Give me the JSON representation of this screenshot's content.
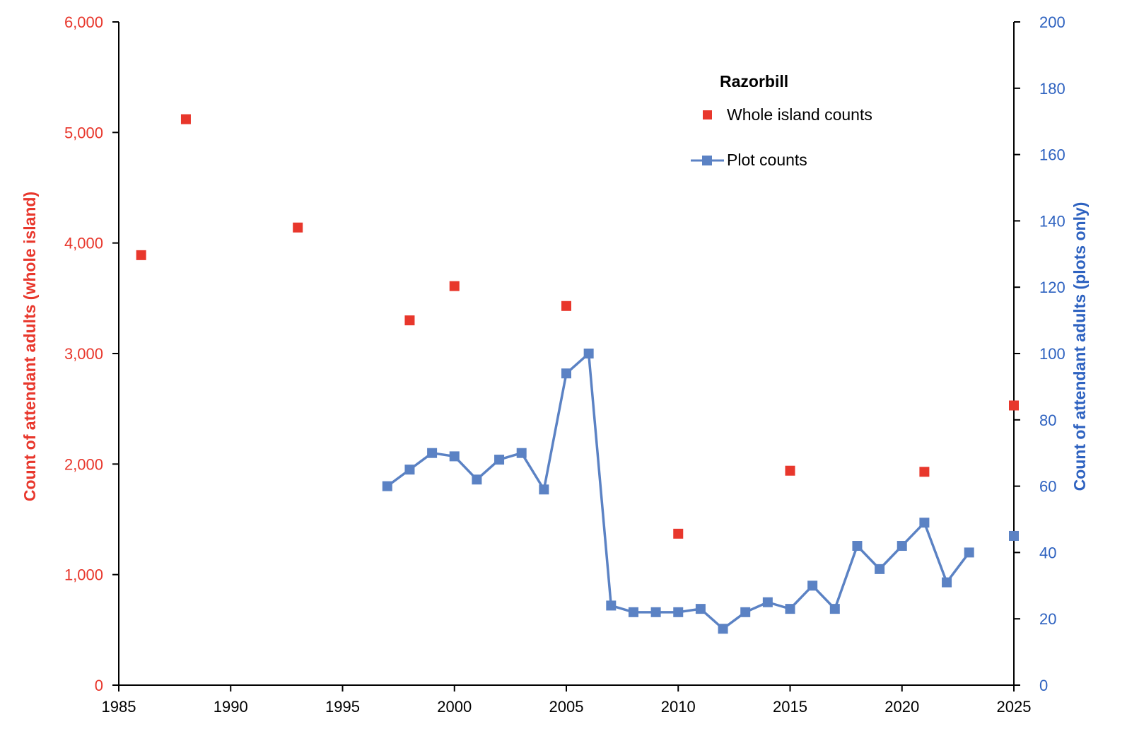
{
  "chart_data": {
    "type": "line",
    "title": "",
    "legend_title": "Razorbill",
    "legend_position": "top-right",
    "grid": false,
    "xlabel": "",
    "xlim": [
      1985,
      2025
    ],
    "x_ticks": [
      "1985",
      "1990",
      "1995",
      "2000",
      "2005",
      "2010",
      "2015",
      "2020",
      "2025"
    ],
    "ylabel_left": "Count of attendant adults  (whole island)",
    "ylim_left": [
      0,
      6000
    ],
    "y_ticks_left": [
      "0",
      "1,000",
      "2,000",
      "3,000",
      "4,000",
      "5,000",
      "6,000"
    ],
    "ylabel_right": "Count of attendant adults  (plots only)",
    "ylim_right": [
      0,
      200
    ],
    "y_ticks_right": [
      "0",
      "20",
      "40",
      "60",
      "80",
      "100",
      "120",
      "140",
      "160",
      "180",
      "200"
    ],
    "series": [
      {
        "name": "Whole island counts",
        "type": "scatter",
        "axis": "left",
        "color": "#e8372c",
        "marker": "square",
        "x": [
          1986,
          1988,
          1993,
          1998,
          2000,
          2005,
          2010,
          2015,
          2021,
          2025
        ],
        "y": [
          3890,
          5120,
          4140,
          3300,
          3610,
          3430,
          1370,
          1940,
          1930,
          2530
        ]
      },
      {
        "name": "Plot counts",
        "type": "line",
        "axis": "right",
        "color": "#5b82c4",
        "marker": "square",
        "segments": [
          {
            "x": [
              1997,
              1998,
              1999,
              2000,
              2001,
              2002,
              2003,
              2004,
              2005,
              2006,
              2007,
              2008,
              2009,
              2010,
              2011,
              2012,
              2013,
              2014,
              2015,
              2016,
              2017,
              2018,
              2019,
              2020,
              2021,
              2022,
              2023
            ],
            "y": [
              60,
              65,
              70,
              69,
              62,
              68,
              70,
              59,
              94,
              100,
              24,
              22,
              22,
              22,
              23,
              17,
              22,
              25,
              23,
              30,
              23,
              42,
              35,
              42,
              49,
              31,
              40
            ]
          },
          {
            "x": [
              2025
            ],
            "y": [
              45
            ]
          }
        ]
      }
    ]
  }
}
